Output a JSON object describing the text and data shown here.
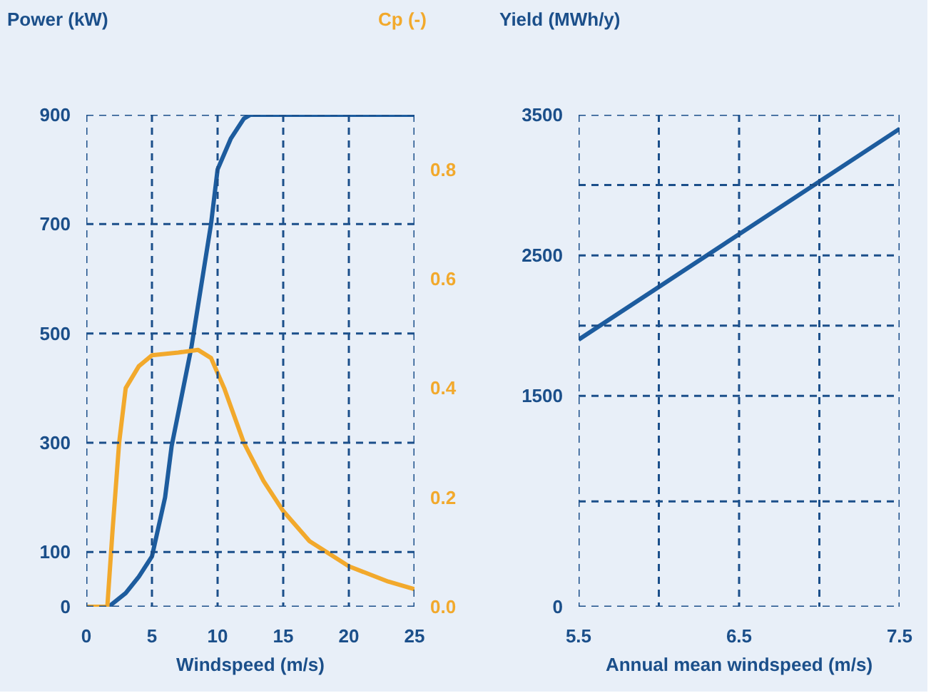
{
  "chart_data": [
    {
      "type": "line",
      "ylabel": "Power (kW)",
      "y2label": "Cp (-)",
      "xlabel": "Windspeed (m/s)",
      "xlim": [
        0,
        25
      ],
      "xticks": [
        0,
        5,
        10,
        15,
        20,
        25
      ],
      "ylim": [
        0,
        900
      ],
      "yticks": [
        0,
        100,
        300,
        500,
        700,
        900
      ],
      "y2lim": [
        0,
        0.9
      ],
      "y2ticks": [
        {
          "value": 0,
          "label": "0.0"
        },
        0.2,
        0.4,
        0.6,
        0.8
      ],
      "grid": true,
      "series": [
        {
          "color": "#1d5c9e",
          "x": [
            0,
            1.7,
            3,
            4,
            5,
            6,
            6.5,
            8,
            9.5,
            10,
            11,
            12,
            12.5,
            25
          ],
          "values": [
            0,
            0,
            25,
            55,
            92,
            200,
            294,
            474,
            700,
            800,
            856,
            893,
            900,
            900
          ]
        },
        {
          "color": "#f2a92c",
          "axis": "y2",
          "x": [
            0,
            1.6,
            2,
            2.5,
            3,
            4,
            5,
            7,
            8.5,
            9.5,
            10.5,
            12,
            13.5,
            15,
            17,
            20,
            23,
            25
          ],
          "values": [
            0,
            0,
            0.14,
            0.3,
            0.4,
            0.44,
            0.46,
            0.465,
            0.47,
            0.455,
            0.4,
            0.3,
            0.23,
            0.175,
            0.12,
            0.074,
            0.046,
            0.032
          ]
        }
      ]
    },
    {
      "type": "line",
      "ylabel": "Yield (MWh/y)",
      "xlabel": "Annual mean windspeed (m/s)",
      "xlim": [
        5.5,
        7.5
      ],
      "xticks": [
        5.5,
        {
          "value": 6,
          "label": null
        },
        6.5,
        {
          "value": 7,
          "label": null
        },
        7.5
      ],
      "ylim": [
        0,
        3500
      ],
      "yticks": [
        0,
        {
          "value": 750,
          "label": null
        },
        1500,
        {
          "value": 2000,
          "label": null
        },
        2500,
        {
          "value": 3000,
          "label": null
        },
        3500
      ],
      "grid": true,
      "series": [
        {
          "color": "#1d5c9e",
          "x": [
            5.5,
            6.5,
            7.5
          ],
          "values": [
            1900,
            2650,
            3400
          ]
        }
      ]
    }
  ]
}
